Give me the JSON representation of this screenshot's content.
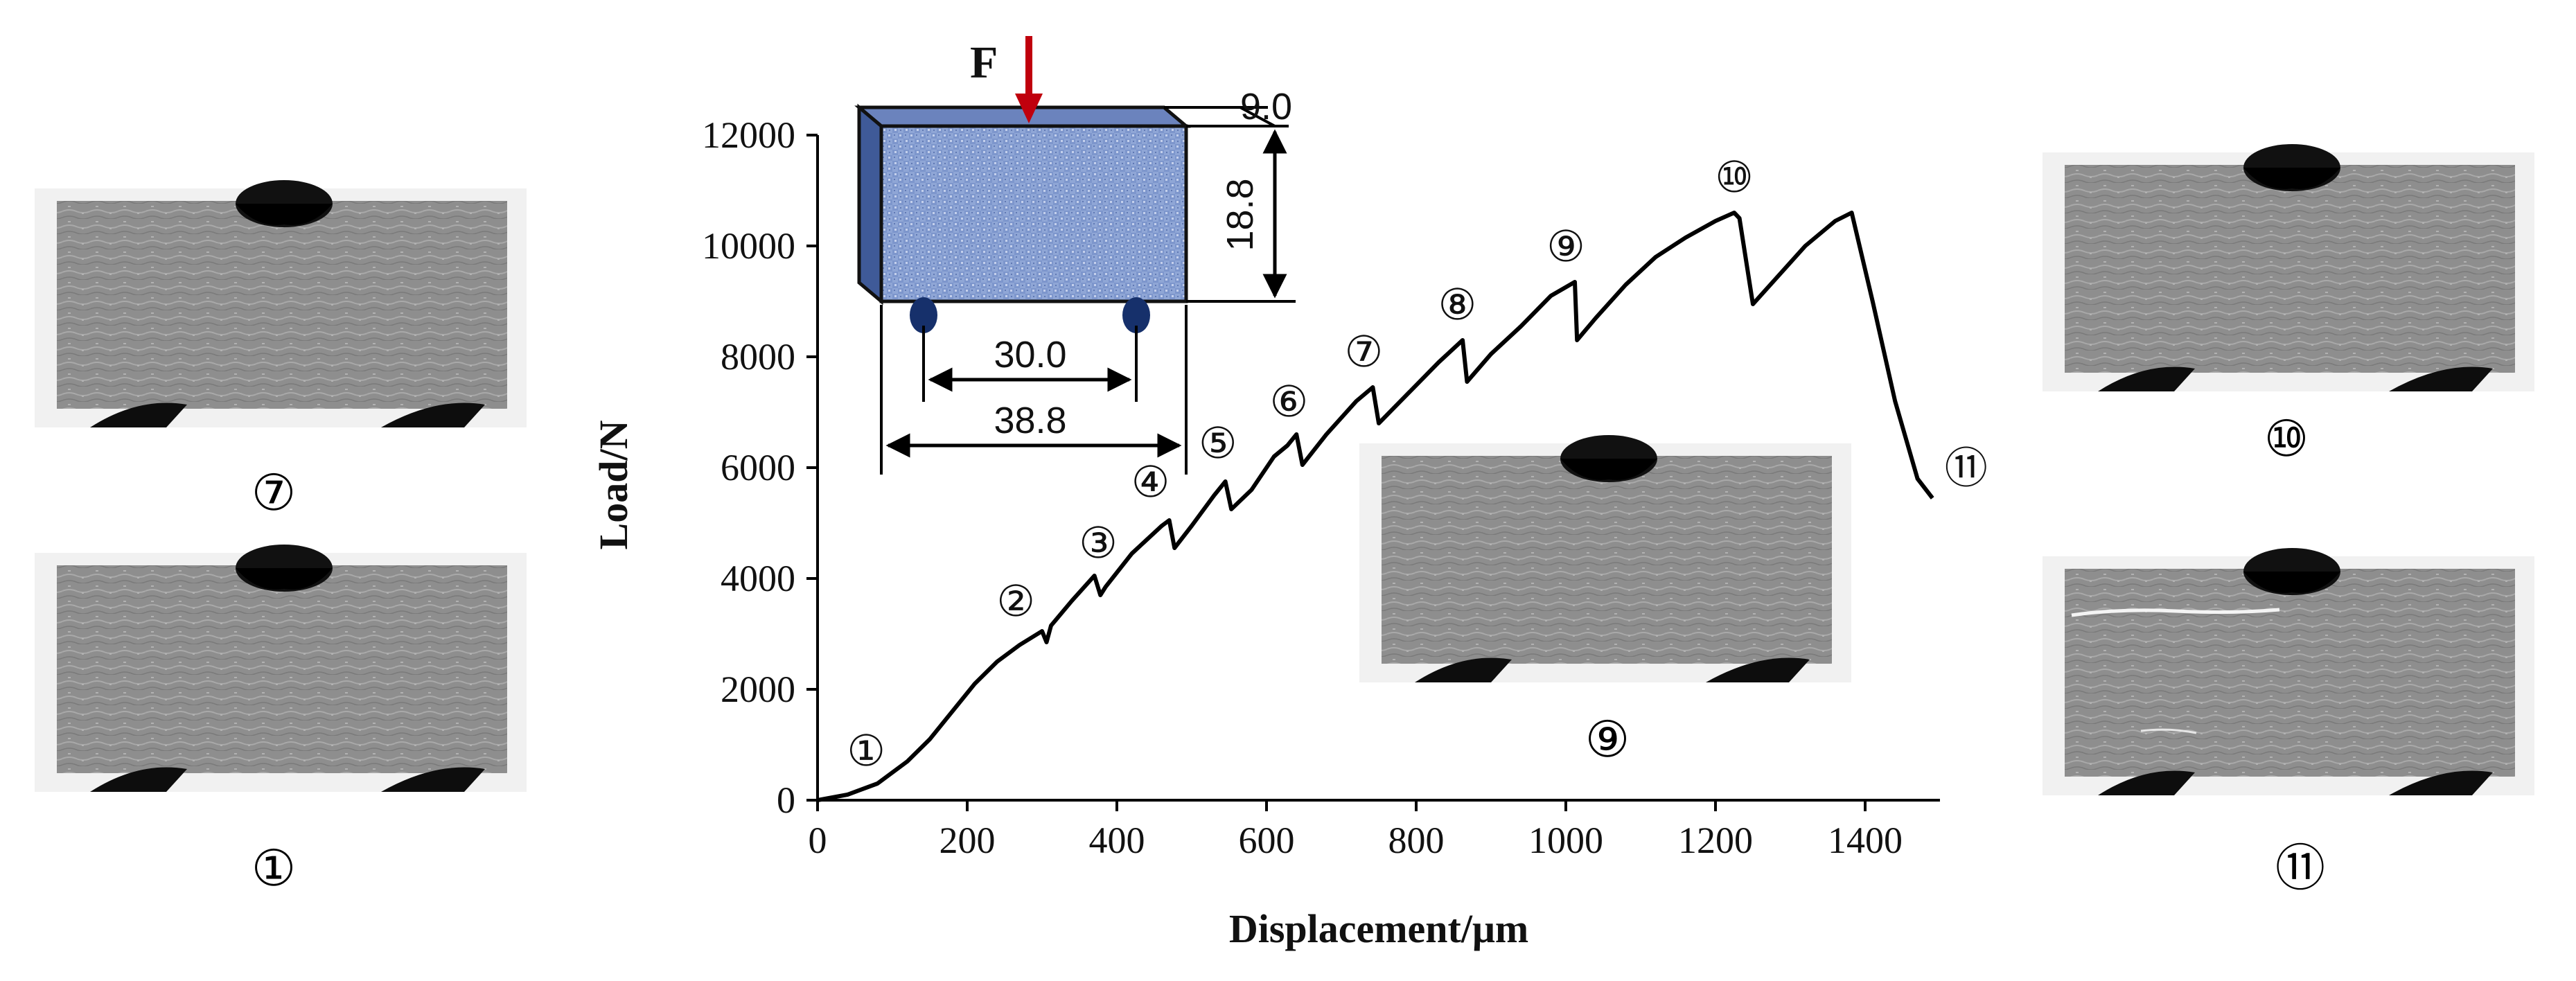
{
  "chart_data": {
    "type": "line",
    "title": "",
    "xlabel": "Displacement/μm",
    "ylabel": "Load/N",
    "xlim": [
      0,
      1500
    ],
    "ylim": [
      0,
      12000
    ],
    "x_ticks": [
      0,
      200,
      400,
      600,
      800,
      1000,
      1200,
      1400
    ],
    "y_ticks": [
      0,
      2000,
      4000,
      6000,
      8000,
      10000,
      12000
    ],
    "grid": false,
    "legend": "none",
    "line_color": "#000000",
    "series": [
      {
        "x": [
          0,
          40,
          80,
          120,
          150,
          180,
          210,
          240,
          270,
          300,
          306,
          312,
          340,
          370,
          378,
          385,
          420,
          460,
          470,
          477,
          500,
          530,
          545,
          553,
          580,
          610,
          628,
          640,
          648,
          680,
          720,
          742,
          750,
          790,
          830,
          862,
          868,
          900,
          940,
          980,
          1012,
          1015,
          1040,
          1080,
          1120,
          1160,
          1200,
          1225,
          1232,
          1250,
          1280,
          1320,
          1360,
          1382,
          1410,
          1440,
          1470,
          1490
        ],
        "y": [
          0,
          100,
          300,
          700,
          1100,
          1600,
          2100,
          2500,
          2800,
          3050,
          2850,
          3150,
          3600,
          4050,
          3700,
          3850,
          4450,
          4950,
          5050,
          4550,
          4950,
          5500,
          5750,
          5250,
          5600,
          6200,
          6400,
          6600,
          6050,
          6600,
          7200,
          7450,
          6800,
          7350,
          7900,
          8300,
          7550,
          8050,
          8550,
          9100,
          9350,
          8300,
          8700,
          9300,
          9800,
          10150,
          10450,
          10600,
          10500,
          8950,
          9400,
          10000,
          10450,
          10600,
          9000,
          7200,
          5800,
          5450
        ]
      }
    ],
    "annotations": [
      {
        "label": "①",
        "x": 65,
        "y": 900
      },
      {
        "label": "②",
        "x": 265,
        "y": 3600
      },
      {
        "label": "③",
        "x": 375,
        "y": 4650
      },
      {
        "label": "④",
        "x": 445,
        "y": 5750
      },
      {
        "label": "⑤",
        "x": 535,
        "y": 6450
      },
      {
        "label": "⑥",
        "x": 630,
        "y": 7200
      },
      {
        "label": "⑦",
        "x": 730,
        "y": 8100
      },
      {
        "label": "⑧",
        "x": 855,
        "y": 8950
      },
      {
        "label": "⑨",
        "x": 1000,
        "y": 10000
      },
      {
        "label": "⑩",
        "x": 1225,
        "y": 11250
      },
      {
        "label": "⑪",
        "x": 1535,
        "y": 6000
      }
    ]
  },
  "inset": {
    "force_label": "F",
    "width_label": "9.0",
    "height_label": "18.8",
    "span_label": "30.0",
    "length_label": "38.8",
    "block_color": "#8fa6d6",
    "arrow_color": "#c0000d",
    "support_color": "#16306b"
  },
  "photos": [
    {
      "caption": "⑦"
    },
    {
      "caption": "①"
    },
    {
      "caption": "⑨"
    },
    {
      "caption": "⑩"
    },
    {
      "caption": "⑪"
    }
  ]
}
